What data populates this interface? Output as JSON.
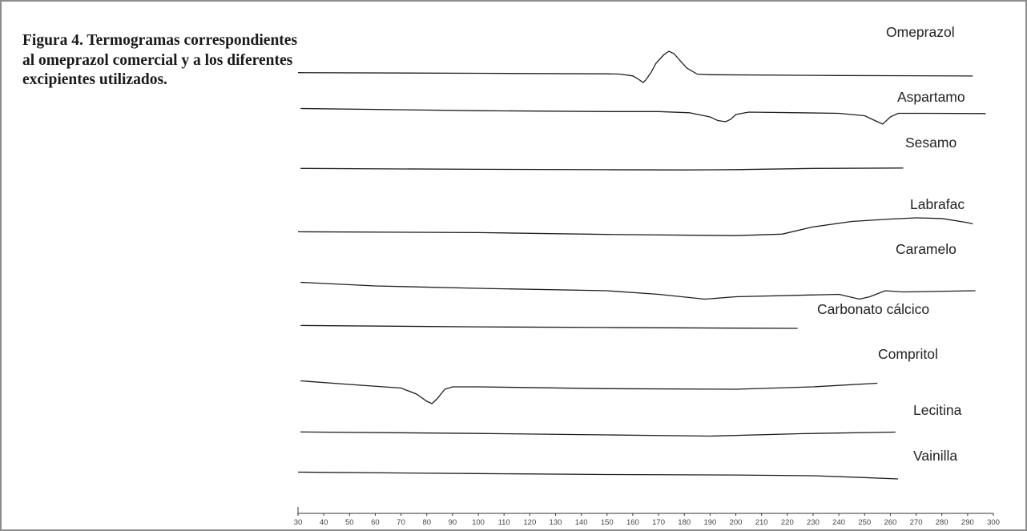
{
  "caption": "Figura 4. Termogramas correspondientes al omeprazol comercial y a los diferentes excipientes utilizados.",
  "chart_data": {
    "type": "line",
    "title": "Figura 4. Termogramas correspondientes al omeprazol comercial y a los diferentes excipientes utilizados.",
    "xlabel": "",
    "ylabel": "",
    "xlim": [
      30,
      300
    ],
    "x_ticks": [
      30,
      40,
      50,
      60,
      70,
      80,
      90,
      100,
      110,
      120,
      130,
      140,
      150,
      160,
      170,
      180,
      190,
      200,
      210,
      220,
      230,
      240,
      250,
      260,
      270,
      280,
      290,
      300
    ],
    "grid": false,
    "legend": "none",
    "line_color": "#1e1e1e",
    "series": [
      {
        "name": "Omeprazol",
        "points": [
          [
            30,
            0.2
          ],
          [
            100,
            -0.3
          ],
          [
            150,
            -0.8
          ],
          [
            155,
            -1.0
          ],
          [
            160,
            -2.5
          ],
          [
            162,
            -5.0
          ],
          [
            164,
            -8.0
          ],
          [
            165,
            -6.0
          ],
          [
            167,
            0.0
          ],
          [
            169,
            8.0
          ],
          [
            172,
            15.0
          ],
          [
            174,
            18.0
          ],
          [
            176,
            16.0
          ],
          [
            178,
            11.0
          ],
          [
            181,
            4.0
          ],
          [
            185,
            -1.0
          ],
          [
            190,
            -1.5
          ],
          [
            240,
            -2.2
          ],
          [
            292,
            -2.6
          ]
        ]
      },
      {
        "name": "Aspartamo",
        "points": [
          [
            31,
            1.0
          ],
          [
            100,
            -0.8
          ],
          [
            150,
            -1.5
          ],
          [
            170,
            -1.5
          ],
          [
            182,
            -2.5
          ],
          [
            190,
            -6.0
          ],
          [
            193,
            -9.0
          ],
          [
            196,
            -10.0
          ],
          [
            198,
            -8.0
          ],
          [
            200,
            -4.0
          ],
          [
            205,
            -2.0
          ],
          [
            225,
            -2.5
          ],
          [
            240,
            -3.0
          ],
          [
            250,
            -5.0
          ],
          [
            254,
            -9.0
          ],
          [
            257,
            -12.0
          ],
          [
            260,
            -6.0
          ],
          [
            263,
            -3.0
          ],
          [
            275,
            -3.0
          ],
          [
            297,
            -3.2
          ]
        ]
      },
      {
        "name": "Sesamo",
        "points": [
          [
            31,
            0.5
          ],
          [
            100,
            -0.3
          ],
          [
            150,
            -0.6
          ],
          [
            180,
            -0.8
          ],
          [
            200,
            -0.5
          ],
          [
            230,
            0.5
          ],
          [
            265,
            0.8
          ]
        ]
      },
      {
        "name": "Labrafac",
        "points": [
          [
            30,
            0.4
          ],
          [
            100,
            -0.3
          ],
          [
            150,
            -1.8
          ],
          [
            200,
            -2.8
          ],
          [
            218,
            -1.5
          ],
          [
            230,
            4.5
          ],
          [
            245,
            9.0
          ],
          [
            260,
            11.0
          ],
          [
            270,
            12.0
          ],
          [
            280,
            11.5
          ],
          [
            290,
            8.0
          ],
          [
            292,
            7.0
          ]
        ]
      },
      {
        "name": "Caramelo",
        "points": [
          [
            31,
            3.0
          ],
          [
            60,
            0.0
          ],
          [
            100,
            -2.0
          ],
          [
            150,
            -4.0
          ],
          [
            170,
            -7.0
          ],
          [
            188,
            -11.0
          ],
          [
            200,
            -9.0
          ],
          [
            240,
            -7.0
          ],
          [
            248,
            -11.0
          ],
          [
            252,
            -9.0
          ],
          [
            258,
            -4.0
          ],
          [
            265,
            -5.0
          ],
          [
            293,
            -4.0
          ]
        ]
      },
      {
        "name": "Carbonato cálcico",
        "points": [
          [
            31,
            0.4
          ],
          [
            100,
            -0.7
          ],
          [
            150,
            -1.3
          ],
          [
            200,
            -1.8
          ],
          [
            224,
            -2.0
          ]
        ]
      },
      {
        "name": "Compritol",
        "points": [
          [
            31,
            3.0
          ],
          [
            50,
            0.0
          ],
          [
            70,
            -3.0
          ],
          [
            76,
            -8.0
          ],
          [
            80,
            -14.0
          ],
          [
            82,
            -16.0
          ],
          [
            84,
            -12.0
          ],
          [
            87,
            -4.0
          ],
          [
            90,
            -2.0
          ],
          [
            100,
            -2.0
          ],
          [
            150,
            -3.5
          ],
          [
            200,
            -4.0
          ],
          [
            230,
            -2.0
          ],
          [
            255,
            1.0
          ]
        ]
      },
      {
        "name": "Lecitina",
        "points": [
          [
            31,
            0.5
          ],
          [
            100,
            -0.8
          ],
          [
            150,
            -2.0
          ],
          [
            190,
            -3.0
          ],
          [
            225,
            -1.0
          ],
          [
            262,
            0.3
          ]
        ]
      },
      {
        "name": "Vainilla",
        "points": [
          [
            30,
            1.0
          ],
          [
            100,
            -0.2
          ],
          [
            150,
            -1.0
          ],
          [
            200,
            -1.4
          ],
          [
            230,
            -2.0
          ],
          [
            250,
            -3.5
          ],
          [
            263,
            -4.7
          ]
        ]
      }
    ]
  }
}
